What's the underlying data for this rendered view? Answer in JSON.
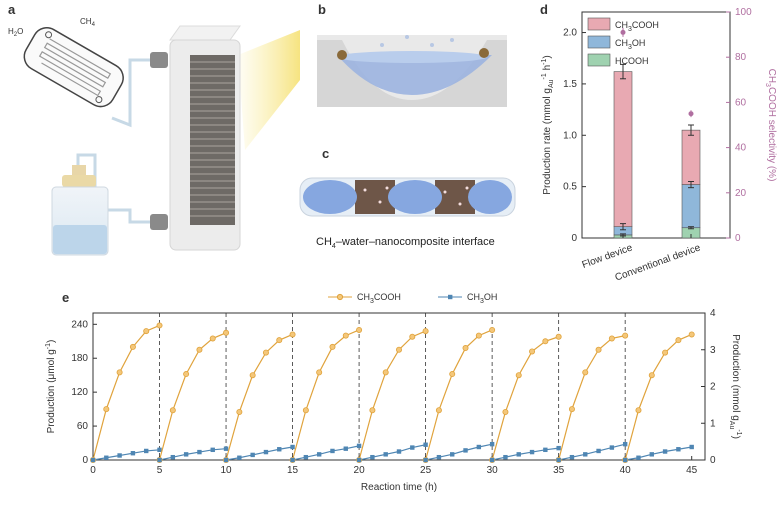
{
  "panels": {
    "a": {
      "label": "a",
      "ch4_label": "CH",
      "ch4_sub": "4",
      "h2o_label": "H",
      "h2o_sub": "2",
      "h2o_tail": "O"
    },
    "b": {
      "label": "b"
    },
    "c": {
      "label": "c",
      "caption_prefix": "CH",
      "caption_sub": "4",
      "caption_suffix": "–water–nanocomposite interface"
    },
    "d": {
      "label": "d"
    },
    "e": {
      "label": "e"
    }
  },
  "colors": {
    "ch3cooh": "#e8a9b2",
    "ch3oh": "#8fb7da",
    "hcooh": "#9fd2b0",
    "selectivity": "#b06fa0",
    "line_ch3cooh": "#e0a33c",
    "line_ch3oh": "#4f86b3",
    "frame": "#e6e6e6",
    "light": "#f8ec9c"
  },
  "chart_data": [
    {
      "type": "bar",
      "stacked": true,
      "categories": [
        "Flow device",
        "Conventional device"
      ],
      "series": [
        {
          "name": "CH3COOH",
          "values": [
            1.51,
            0.53
          ]
        },
        {
          "name": "CH3OH",
          "values": [
            0.08,
            0.42
          ]
        },
        {
          "name": "HCOOH",
          "values": [
            0.03,
            0.1
          ]
        }
      ],
      "totals_error": [
        0.07,
        0.05
      ],
      "ch3oh_top_error": [
        0.03,
        0.03
      ],
      "hcooh_error": [
        0.01,
        0.01
      ],
      "secondary_axis": {
        "label_prefix": "CH",
        "label_sub": "3",
        "label_suffix": "COOH selectivity (%)",
        "values": [
          91,
          55
        ],
        "errors": [
          2,
          1.5
        ],
        "ylim": [
          0,
          100
        ],
        "ticks": [
          "0",
          "20",
          "40",
          "60",
          "80",
          "100"
        ]
      },
      "legend": [
        {
          "prefix": "CH",
          "sub": "3",
          "suffix": "COOH"
        },
        {
          "prefix": "CH",
          "sub": "3",
          "suffix": "OH"
        },
        {
          "prefix": "HCOOH",
          "sub": "",
          "suffix": ""
        }
      ],
      "legend_position": "top-left",
      "ylabel_prefix": "Production rate (mmol g",
      "ylabel_sub": "Au",
      "ylabel_sup": "-1",
      "ylabel_mid": " h",
      "ylabel_sup2": "-1",
      "ylabel_end": ")",
      "ylim": [
        0,
        2.2
      ],
      "yticks": [
        "0",
        "0.5",
        "1.0",
        "1.5",
        "2.0"
      ]
    },
    {
      "type": "line",
      "xlabel": "Reaction time (h)",
      "ylabel": "Production (μmol g",
      "ylabel_sup": "-1",
      "ylabel_end": ")",
      "ylabel_right": "Production (mmol g",
      "ylabel_right_sub": "Au",
      "ylabel_right_sup": "-1",
      "ylabel_right_end": ")",
      "xlim": [
        0,
        46
      ],
      "ylim": [
        0,
        260
      ],
      "ylim_right": [
        0,
        4
      ],
      "xticks": [
        "0",
        "5",
        "10",
        "15",
        "20",
        "25",
        "30",
        "35",
        "40",
        "45"
      ],
      "yticks": [
        "0",
        "60",
        "120",
        "180",
        "240"
      ],
      "yticks_right": [
        "0",
        "1",
        "2",
        "3",
        "4"
      ],
      "cycle_boundaries": [
        5,
        10,
        15,
        20,
        25,
        30,
        35,
        40
      ],
      "legend": [
        {
          "prefix": "CH",
          "sub": "3",
          "suffix": "COOH"
        },
        {
          "prefix": "CH",
          "sub": "3",
          "suffix": "OH"
        }
      ],
      "legend_position": "top-center",
      "cycles": [
        {
          "ch3cooh": [
            0,
            90,
            155,
            200,
            228,
            238
          ],
          "ch3oh": [
            0,
            4,
            8,
            12,
            16,
            18
          ]
        },
        {
          "ch3cooh": [
            0,
            88,
            152,
            195,
            215,
            225
          ],
          "ch3oh": [
            0,
            5,
            10,
            14,
            18,
            20
          ]
        },
        {
          "ch3cooh": [
            0,
            85,
            150,
            190,
            212,
            222
          ],
          "ch3oh": [
            0,
            4,
            9,
            14,
            19,
            23
          ]
        },
        {
          "ch3cooh": [
            0,
            88,
            155,
            200,
            220,
            230
          ],
          "ch3oh": [
            0,
            5,
            10,
            16,
            20,
            25
          ]
        },
        {
          "ch3cooh": [
            0,
            88,
            155,
            195,
            218,
            228
          ],
          "ch3oh": [
            0,
            5,
            10,
            15,
            22,
            27
          ]
        },
        {
          "ch3cooh": [
            0,
            88,
            152,
            198,
            220,
            230
          ],
          "ch3oh": [
            0,
            5,
            10,
            17,
            23,
            28
          ]
        },
        {
          "ch3cooh": [
            0,
            85,
            150,
            192,
            210,
            218
          ],
          "ch3oh": [
            0,
            5,
            10,
            14,
            18,
            21
          ]
        },
        {
          "ch3cooh": [
            0,
            90,
            155,
            195,
            215,
            220
          ],
          "ch3oh": [
            0,
            5,
            10,
            16,
            22,
            28
          ]
        },
        {
          "ch3cooh": [
            0,
            88,
            150,
            190,
            212,
            222
          ],
          "ch3oh": [
            0,
            4,
            10,
            15,
            19,
            23
          ]
        }
      ]
    }
  ]
}
